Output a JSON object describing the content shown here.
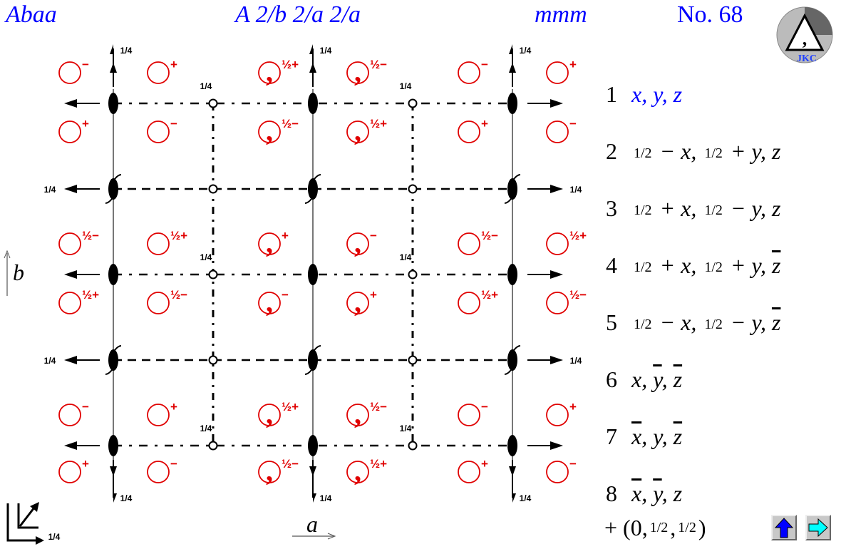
{
  "header": {
    "symbol_short": "Abaa",
    "symbol_full": "A 2/b 2/a 2/a",
    "point_group": "mmm",
    "number": "No. 68"
  },
  "logo": {
    "text": "JKC"
  },
  "axes": {
    "a": "a",
    "b": "b",
    "quarter": "1/4"
  },
  "colors": {
    "title": "#0000ff",
    "positions": "#e00000",
    "symbols": "#000000"
  },
  "positions": {
    "columns_comma": [
      false,
      false,
      true,
      true,
      false,
      false
    ],
    "rows": [
      [
        "−",
        "+",
        "½+",
        "½−",
        "−",
        "+"
      ],
      [
        "+",
        "−",
        "½−",
        "½+",
        "+",
        "−"
      ],
      [
        "½−",
        "½+",
        "+",
        "−",
        "½−",
        "½+"
      ],
      [
        "½+",
        "½−",
        "−",
        "+",
        "½+",
        "½−"
      ],
      [
        "−",
        "+",
        "½+",
        "½−",
        "−",
        "+"
      ],
      [
        "+",
        "−",
        "½−",
        "½+",
        "+",
        "−"
      ]
    ]
  },
  "operations": [
    {
      "n": "1",
      "tokens": [
        "x, y, z"
      ]
    },
    {
      "n": "2",
      "tokens": [
        "1/2",
        " − x, ",
        "1/2",
        " + y, z"
      ]
    },
    {
      "n": "3",
      "tokens": [
        "1/2",
        " + x, ",
        "1/2",
        " − y, z"
      ]
    },
    {
      "n": "4",
      "tokens": [
        "1/2",
        " + x, ",
        "1/2",
        " + y, ",
        "~z"
      ]
    },
    {
      "n": "5",
      "tokens": [
        "1/2",
        " − x, ",
        "1/2",
        " − y, ",
        "~z"
      ]
    },
    {
      "n": "6",
      "tokens": [
        "x, ",
        "~y",
        ", ",
        "~z"
      ]
    },
    {
      "n": "7",
      "tokens": [
        "~x",
        ", y, ",
        "~z"
      ]
    },
    {
      "n": "8",
      "tokens": [
        "~x",
        ", ",
        "~y",
        ", z"
      ]
    }
  ],
  "centering": {
    "prefix": "+ (0,",
    "tokens": [
      "1/2",
      ",",
      "1/2"
    ],
    "suffix": ")"
  },
  "nav": {
    "up": "up-arrow",
    "next": "right-arrow"
  }
}
